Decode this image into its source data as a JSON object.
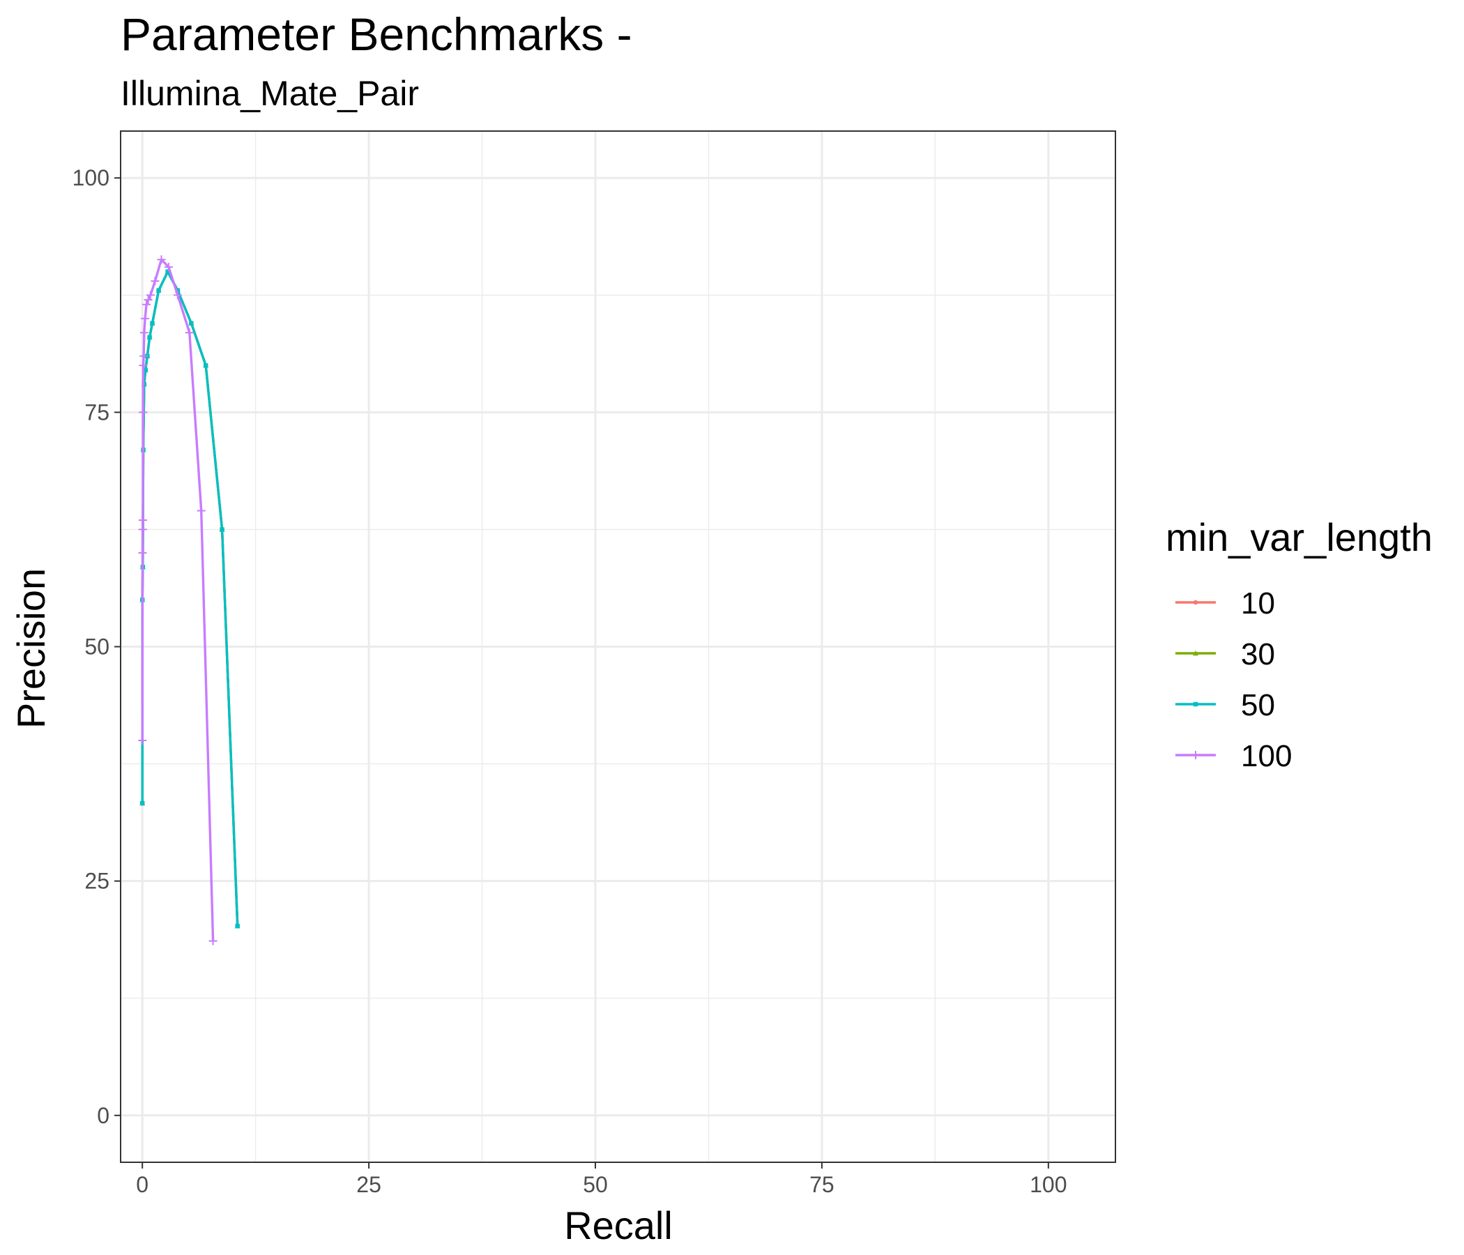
{
  "chart_data": {
    "type": "line",
    "title": "Parameter Benchmarks -",
    "subtitle": "Illumina_Mate_Pair",
    "xlabel": "Recall",
    "ylabel": "Precision",
    "xlim": [
      -2.4,
      107.4
    ],
    "ylim": [
      -5,
      105
    ],
    "x_ticks": [
      0,
      25,
      50,
      75,
      100
    ],
    "x_tick_labels": [
      "0",
      "25",
      "50",
      "75",
      "100"
    ],
    "y_ticks": [
      0,
      25,
      50,
      75,
      100
    ],
    "y_tick_labels": [
      "0",
      "25",
      "50",
      "75",
      "100"
    ],
    "grid": true,
    "legend": {
      "title": "min_var_length",
      "position": "right"
    },
    "series": [
      {
        "name": "10",
        "color": "#F8766D",
        "marker": "circle",
        "x": [
          0.0,
          0.0,
          0.05,
          0.1,
          0.2,
          0.35,
          0.55,
          0.8,
          1.1,
          1.8,
          2.8,
          3.9,
          5.4,
          7.0,
          8.8,
          10.5
        ],
        "y": [
          33.3,
          55.0,
          58.5,
          71.0,
          78.0,
          79.5,
          81.0,
          83.0,
          84.5,
          88.0,
          90.0,
          88.0,
          84.5,
          80.0,
          62.5,
          20.2
        ]
      },
      {
        "name": "30",
        "color": "#7CAE00",
        "marker": "triangle",
        "x": [
          0.0,
          0.0,
          0.05,
          0.1,
          0.2,
          0.35,
          0.55,
          0.8,
          1.1,
          1.8,
          2.8,
          3.9,
          5.4,
          7.0,
          8.8,
          10.5
        ],
        "y": [
          33.3,
          55.0,
          58.5,
          71.0,
          78.0,
          79.5,
          81.0,
          83.0,
          84.5,
          88.0,
          90.0,
          88.0,
          84.5,
          80.0,
          62.5,
          20.2
        ]
      },
      {
        "name": "50",
        "color": "#00BFC4",
        "marker": "square",
        "x": [
          0.0,
          0.0,
          0.05,
          0.1,
          0.2,
          0.35,
          0.55,
          0.8,
          1.1,
          1.8,
          2.8,
          3.9,
          5.4,
          7.0,
          8.8,
          10.5
        ],
        "y": [
          33.3,
          55.0,
          58.5,
          71.0,
          78.0,
          79.5,
          81.0,
          83.0,
          84.5,
          88.0,
          90.0,
          88.0,
          84.5,
          80.0,
          62.5,
          20.2
        ]
      },
      {
        "name": "100",
        "color": "#C77CFF",
        "marker": "plus",
        "x": [
          0.0,
          0.02,
          0.04,
          0.06,
          0.08,
          0.1,
          0.15,
          0.2,
          0.3,
          0.45,
          0.65,
          0.9,
          1.4,
          2.1,
          2.9,
          3.9,
          5.2,
          6.5,
          7.8
        ],
        "y": [
          40.0,
          60.0,
          62.5,
          63.5,
          75.0,
          80.0,
          81.0,
          83.5,
          85.0,
          86.5,
          87.0,
          87.5,
          89.0,
          91.3,
          90.5,
          87.5,
          83.5,
          64.5,
          18.6
        ]
      }
    ]
  }
}
